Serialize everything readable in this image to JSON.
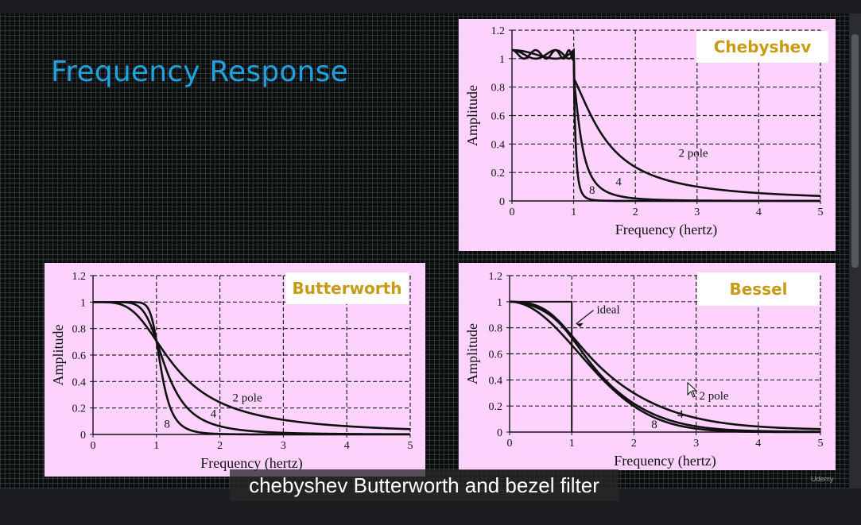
{
  "slide": {
    "title": "Frequency Response",
    "caption": "chebyshev Butterworth and bezel filter",
    "watermark": "Udemy"
  },
  "colors": {
    "title": "#1ea3e0",
    "panel_bg": "#fdd3fd",
    "label_text": "#c89a16",
    "curve": "#111111"
  },
  "chart_data": [
    {
      "type": "line",
      "title": "Chebyshev",
      "xlabel": "Frequency (hertz)",
      "ylabel": "Amplitude",
      "xlim": [
        0,
        5
      ],
      "ylim": [
        0,
        1.2
      ],
      "xticks": [
        "0",
        "1",
        "2",
        "3",
        "4",
        "5"
      ],
      "yticks": [
        "0",
        "0.2",
        "0.4",
        "0.6",
        "0.8",
        "1",
        "1.2"
      ],
      "grid": true,
      "filter": "chebyshev",
      "ripple": 0.06,
      "series": [
        {
          "poles": 2
        },
        {
          "poles": 4
        },
        {
          "poles": 8
        }
      ],
      "annotations": [
        {
          "text": "2 pole",
          "x": 2.7,
          "y": 0.31
        },
        {
          "text": "4",
          "x": 1.68,
          "y": 0.11
        },
        {
          "text": "8",
          "x": 1.25,
          "y": 0.05
        }
      ]
    },
    {
      "type": "line",
      "title": "Butterworth",
      "xlabel": "Frequency (hertz)",
      "ylabel": "Amplitude",
      "xlim": [
        0,
        5
      ],
      "ylim": [
        0,
        1.2
      ],
      "xticks": [
        "0",
        "1",
        "2",
        "3",
        "4",
        "5"
      ],
      "yticks": [
        "0",
        "0.2",
        "0.4",
        "0.6",
        "0.8",
        "1",
        "1.2"
      ],
      "grid": true,
      "filter": "butterworth",
      "series": [
        {
          "poles": 2
        },
        {
          "poles": 4
        },
        {
          "poles": 8
        }
      ],
      "annotations": [
        {
          "text": "2 pole",
          "x": 2.2,
          "y": 0.25
        },
        {
          "text": "4",
          "x": 1.85,
          "y": 0.13
        },
        {
          "text": "8",
          "x": 1.12,
          "y": 0.05
        }
      ]
    },
    {
      "type": "line",
      "title": "Bessel",
      "xlabel": "Frequency (hertz)",
      "ylabel": "Amplitude",
      "xlim": [
        0,
        5
      ],
      "ylim": [
        0,
        1.2
      ],
      "xticks": [
        "0",
        "1",
        "2",
        "3",
        "4",
        "5"
      ],
      "yticks": [
        "0",
        "0.2",
        "0.4",
        "0.6",
        "0.8",
        "1",
        "1.2"
      ],
      "grid": true,
      "filter": "bessel",
      "ideal": {
        "cutoff": 1,
        "level": 1
      },
      "series": [
        {
          "poles": 2
        },
        {
          "poles": 4
        },
        {
          "poles": 8
        }
      ],
      "annotations": [
        {
          "text": "ideal",
          "x": 1.4,
          "y": 0.91,
          "arrow_to": [
            1.07,
            0.83
          ]
        },
        {
          "text": "2 pole",
          "x": 3.05,
          "y": 0.25
        },
        {
          "text": "4",
          "x": 2.7,
          "y": 0.11
        },
        {
          "text": "8",
          "x": 2.28,
          "y": 0.03
        }
      ]
    }
  ]
}
